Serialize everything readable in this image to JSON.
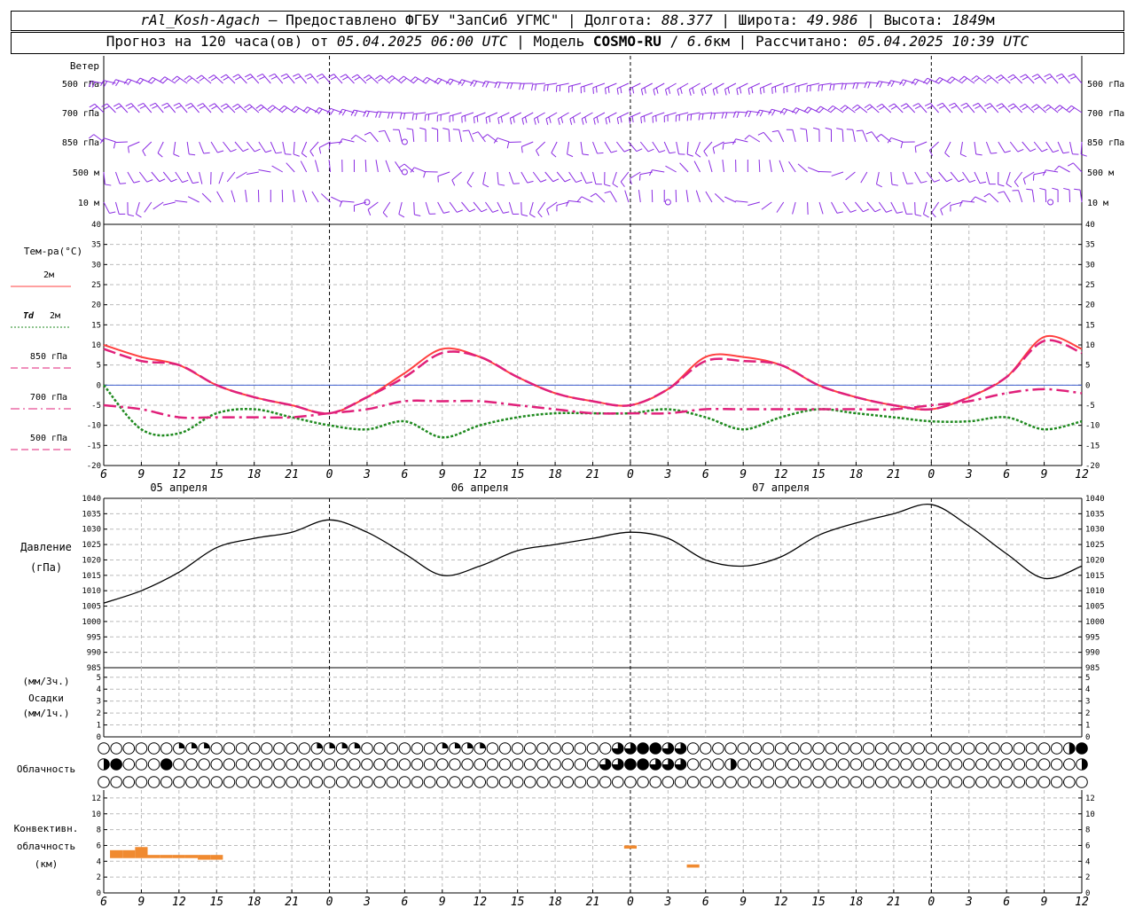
{
  "header": {
    "station": "rAl_Kosh-Agach",
    "provider_sep": "–",
    "provider": "Предоставлено ФГБУ \"ЗапСиб УГМС\"",
    "lon_label": "Долгота:",
    "lon_value": "88.377",
    "lat_label": "Широта:",
    "lat_value": "49.986",
    "alt_label": "Высота:",
    "alt_value": "1849",
    "alt_unit": "м",
    "forecast_label": "Прогноз на 120 часа(ов) от",
    "forecast_start": "05.04.2025 06:00 UTC",
    "model_label": "Модель",
    "model_name": "COSMO-RU",
    "model_sep": "/",
    "model_res": "6.6",
    "model_res_unit": "км",
    "calc_label": "Рассчитано:",
    "calc_time": "05.04.2025 10:39 UTC"
  },
  "wind": {
    "title": "Ветер",
    "levels": [
      "500 гПа",
      "700 гПа",
      "850 гПа",
      "500 м",
      "10 м"
    ],
    "color": "#8a2be2"
  },
  "temperature": {
    "title": "Тем-ра(°С)",
    "legend": [
      {
        "label": "2м",
        "italic": "",
        "color": "#ff4040",
        "dash": "solid"
      },
      {
        "label": "2м",
        "italic": "Td",
        "color": "#1f8a1f",
        "dash": "dot"
      },
      {
        "label": "850 гПа",
        "italic": "",
        "color": "#e0207a",
        "dash": "dash"
      },
      {
        "label": "700 гПа",
        "italic": "",
        "color": "#e0207a",
        "dash": "dashdot"
      },
      {
        "label": "500 гПа",
        "italic": "",
        "color": "#e0207a",
        "dash": "dash"
      }
    ],
    "ticks": [
      40,
      35,
      30,
      25,
      20,
      15,
      10,
      5,
      0,
      -5,
      -10,
      -15,
      -20
    ],
    "day_labels": [
      "05 апреля",
      "06 апреля",
      "07 апреля"
    ]
  },
  "pressure": {
    "title": "Давление",
    "unit": "(гПа)",
    "ticks": [
      1040,
      1035,
      1030,
      1025,
      1020,
      1015,
      1010,
      1005,
      1000,
      995,
      990,
      985
    ]
  },
  "precip": {
    "unit1": "(мм/3ч.)",
    "title": "Осадки",
    "unit2": "(мм/1ч.)",
    "ticks": [
      5,
      4,
      3,
      2,
      1,
      0
    ]
  },
  "cloud": {
    "title": "Облачность"
  },
  "convective": {
    "title1": "Конвективн.",
    "title2": "облачность",
    "unit": "(км)",
    "ticks": [
      12,
      10,
      8,
      6,
      4,
      2,
      0
    ],
    "color": "#f08a30"
  },
  "time_axis": {
    "hour_labels": [
      "6",
      "9",
      "12",
      "15",
      "18",
      "21",
      "0",
      "3",
      "6",
      "9",
      "12",
      "15",
      "18",
      "21",
      "0",
      "3",
      "6",
      "9",
      "12",
      "15",
      "18",
      "21",
      "0",
      "3",
      "6",
      "9",
      "12"
    ]
  },
  "chart_data": [
    {
      "type": "line",
      "title": "Тем-ра(°С)",
      "x_hours_from_start": [
        0,
        3,
        6,
        9,
        12,
        15,
        18,
        21,
        24,
        27,
        30,
        33,
        36,
        39,
        42,
        45,
        48,
        51,
        54,
        57,
        60,
        63,
        66,
        69,
        72,
        75,
        78
      ],
      "ylim": [
        -20,
        40
      ],
      "series": [
        {
          "name": "2м",
          "values": [
            10,
            7,
            5,
            0,
            -3,
            -5,
            -7,
            -3,
            3,
            9,
            7,
            2,
            -2,
            -4,
            -5,
            -1,
            7,
            7,
            5,
            0,
            -3,
            -5,
            -6,
            -3,
            2,
            12,
            9
          ]
        },
        {
          "name": "Td 2м",
          "values": [
            0,
            -11,
            -12,
            -7,
            -6,
            -8,
            -10,
            -11,
            -9,
            -13,
            -10,
            -8,
            -7,
            -7,
            -7,
            -6,
            -8,
            -11,
            -8,
            -6,
            -7,
            -8,
            -9,
            -9,
            -8,
            -11,
            -9
          ]
        },
        {
          "name": "850 гПа",
          "values": [
            9,
            6,
            5,
            0,
            -3,
            -5,
            -7,
            -3,
            2,
            8,
            7,
            2,
            -2,
            -4,
            -5,
            -1,
            6,
            6,
            5,
            0,
            -3,
            -5,
            -6,
            -3,
            2,
            11,
            8
          ]
        },
        {
          "name": "700 гПа",
          "values": [
            -5,
            -6,
            -8,
            -8,
            -8,
            -8,
            -7,
            -6,
            -4,
            -4,
            -4,
            -5,
            -6,
            -7,
            -7,
            -7,
            -6,
            -6,
            -6,
            -6,
            -6,
            -6,
            -5,
            -4,
            -2,
            -1,
            -2
          ]
        }
      ]
    },
    {
      "type": "line",
      "title": "Давление",
      "x_hours_from_start": [
        0,
        3,
        6,
        9,
        12,
        15,
        18,
        21,
        24,
        27,
        30,
        33,
        36,
        39,
        42,
        45,
        48,
        51,
        54,
        57,
        60,
        63,
        66,
        69,
        72,
        75,
        78
      ],
      "ylim": [
        985,
        1040
      ],
      "series": [
        {
          "name": "Давление",
          "values": [
            1006,
            1010,
            1016,
            1024,
            1027,
            1029,
            1033,
            1029,
            1022,
            1015,
            1018,
            1023,
            1025,
            1027,
            1029,
            1027,
            1020,
            1018,
            1021,
            1028,
            1032,
            1035,
            1038,
            1031,
            1022,
            1014,
            1018
          ]
        }
      ]
    },
    {
      "type": "bar",
      "title": "Конвективн. облачность",
      "x_hours_from_start": [
        1,
        2,
        3,
        4,
        5,
        6,
        7,
        8,
        9,
        42,
        47
      ],
      "bottom_km": [
        4.4,
        4.4,
        4.4,
        4.4,
        4.4,
        4.4,
        4.4,
        4.2,
        4.2,
        5.6,
        3.2
      ],
      "top_km": [
        5.4,
        5.4,
        5.8,
        4.8,
        4.8,
        4.8,
        4.8,
        4.8,
        4.8,
        6.0,
        3.6
      ],
      "ylim": [
        0,
        13
      ]
    }
  ]
}
